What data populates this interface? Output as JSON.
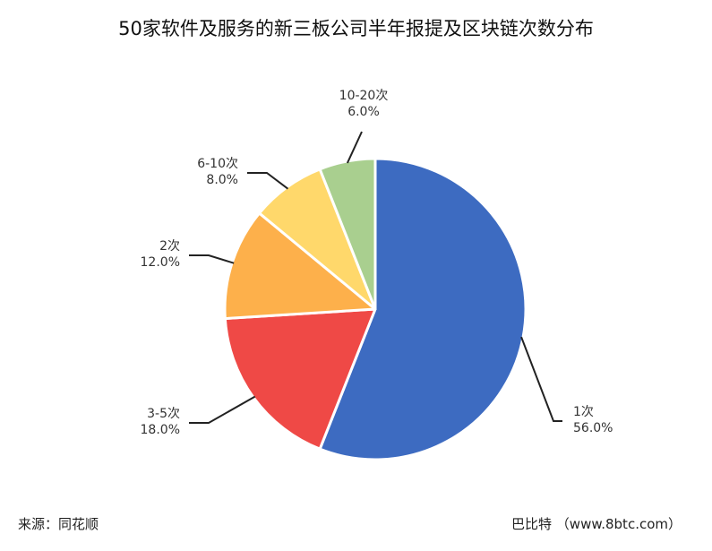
{
  "chart_data": {
    "type": "pie",
    "title": "50家软件及服务的新三板公司半年报提及区块链次数分布",
    "slices": [
      {
        "name": "1次",
        "value": 56.0,
        "pct_label": "56.0%",
        "color": "#3d6bc1"
      },
      {
        "name": "3-5次",
        "value": 18.0,
        "pct_label": "18.0%",
        "color": "#ef4946"
      },
      {
        "name": "2次",
        "value": 12.0,
        "pct_label": "12.0%",
        "color": "#fdb04b"
      },
      {
        "name": "6-10次",
        "value": 8.0,
        "pct_label": "8.0%",
        "color": "#ffd86b"
      },
      {
        "name": "10-20次",
        "value": 6.0,
        "pct_label": "6.0%",
        "color": "#a9cf8f"
      }
    ]
  },
  "footer": {
    "source": "来源：同花顺",
    "credit": "巴比特 （www.8btc.com）"
  }
}
